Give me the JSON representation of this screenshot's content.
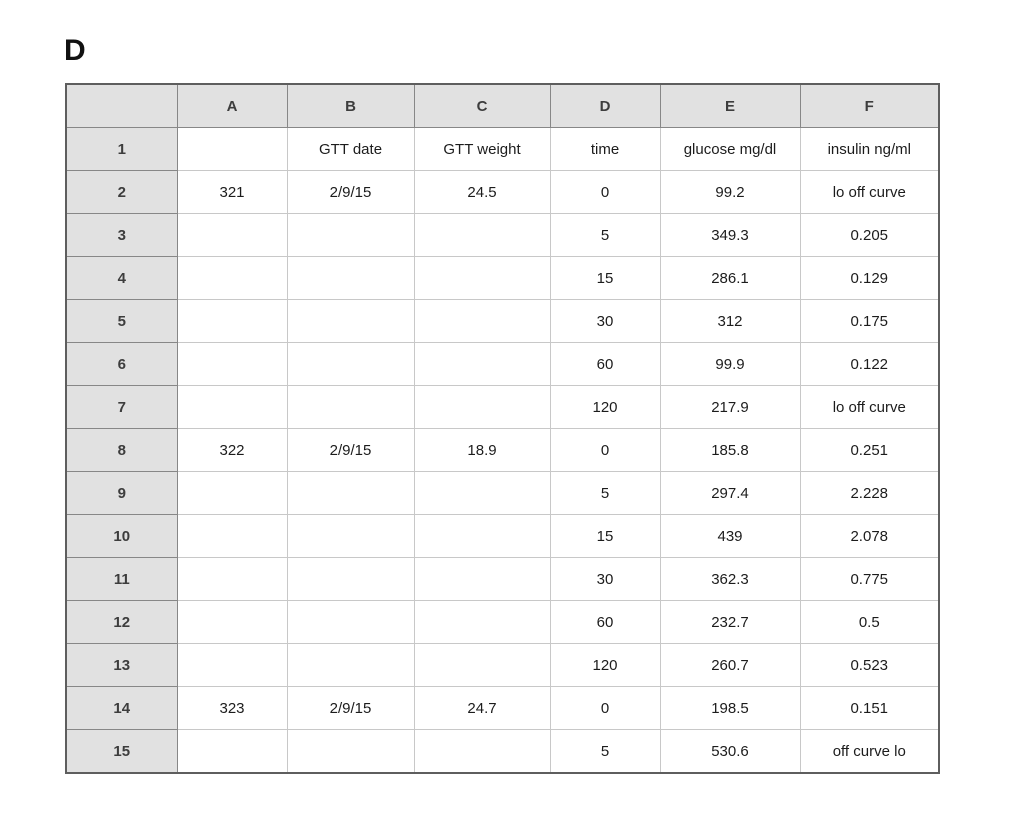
{
  "panel_label": "D",
  "colors": {
    "header_fill": "#e1e1e1",
    "header_border": "#878787",
    "grid_line": "#c8c8c8",
    "outer_border": "#5e5e5e",
    "text": "#1c1c1c",
    "background": "#ffffff"
  },
  "chart_data": {
    "type": "table",
    "title": "",
    "column_headers": [
      "",
      "A",
      "B",
      "C",
      "D",
      "E",
      "F"
    ],
    "field_labels": [
      "GTT date",
      "GTT weight",
      "time",
      "glucose mg/dl",
      "insulin ng/ml"
    ],
    "rows": [
      {
        "num": "1",
        "cells": [
          "",
          "GTT date",
          "GTT weight",
          "time",
          "glucose mg/dl",
          "insulin ng/ml"
        ]
      },
      {
        "num": "2",
        "cells": [
          "321",
          "2/9/15",
          "24.5",
          "0",
          "99.2",
          "lo off curve"
        ]
      },
      {
        "num": "3",
        "cells": [
          "",
          "",
          "",
          "5",
          "349.3",
          "0.205"
        ]
      },
      {
        "num": "4",
        "cells": [
          "",
          "",
          "",
          "15",
          "286.1",
          "0.129"
        ]
      },
      {
        "num": "5",
        "cells": [
          "",
          "",
          "",
          "30",
          "312",
          "0.175"
        ]
      },
      {
        "num": "6",
        "cells": [
          "",
          "",
          "",
          "60",
          "99.9",
          "0.122"
        ]
      },
      {
        "num": "7",
        "cells": [
          "",
          "",
          "",
          "120",
          "217.9",
          "lo off curve"
        ]
      },
      {
        "num": "8",
        "cells": [
          "322",
          "2/9/15",
          "18.9",
          "0",
          "185.8",
          "0.251"
        ]
      },
      {
        "num": "9",
        "cells": [
          "",
          "",
          "",
          "5",
          "297.4",
          "2.228"
        ]
      },
      {
        "num": "10",
        "cells": [
          "",
          "",
          "",
          "15",
          "439",
          "2.078"
        ]
      },
      {
        "num": "11",
        "cells": [
          "",
          "",
          "",
          "30",
          "362.3",
          "0.775"
        ]
      },
      {
        "num": "12",
        "cells": [
          "",
          "",
          "",
          "60",
          "232.7",
          "0.5"
        ]
      },
      {
        "num": "13",
        "cells": [
          "",
          "",
          "",
          "120",
          "260.7",
          "0.523"
        ]
      },
      {
        "num": "14",
        "cells": [
          "323",
          "2/9/15",
          "24.7",
          "0",
          "198.5",
          "0.151"
        ]
      },
      {
        "num": "15",
        "cells": [
          "",
          "",
          "",
          "5",
          "530.6",
          "off curve lo"
        ]
      }
    ],
    "animals": [
      {
        "id": "321",
        "gtt_date": "2/9/15",
        "gtt_weight": 24.5,
        "time": [
          0,
          5,
          15,
          30,
          60,
          120
        ],
        "glucose_mg_dl": [
          99.2,
          349.3,
          286.1,
          312,
          99.9,
          217.9
        ],
        "insulin_ng_ml": [
          "lo off curve",
          0.205,
          0.129,
          0.175,
          0.122,
          "lo off curve"
        ]
      },
      {
        "id": "322",
        "gtt_date": "2/9/15",
        "gtt_weight": 18.9,
        "time": [
          0,
          5,
          15,
          30,
          60,
          120
        ],
        "glucose_mg_dl": [
          185.8,
          297.4,
          439,
          362.3,
          232.7,
          260.7
        ],
        "insulin_ng_ml": [
          0.251,
          2.228,
          2.078,
          0.775,
          0.5,
          0.523
        ]
      },
      {
        "id": "323",
        "gtt_date": "2/9/15",
        "gtt_weight": 24.7,
        "time": [
          0,
          5
        ],
        "glucose_mg_dl": [
          198.5,
          530.6
        ],
        "insulin_ng_ml": [
          0.151,
          "off curve lo"
        ]
      }
    ]
  }
}
